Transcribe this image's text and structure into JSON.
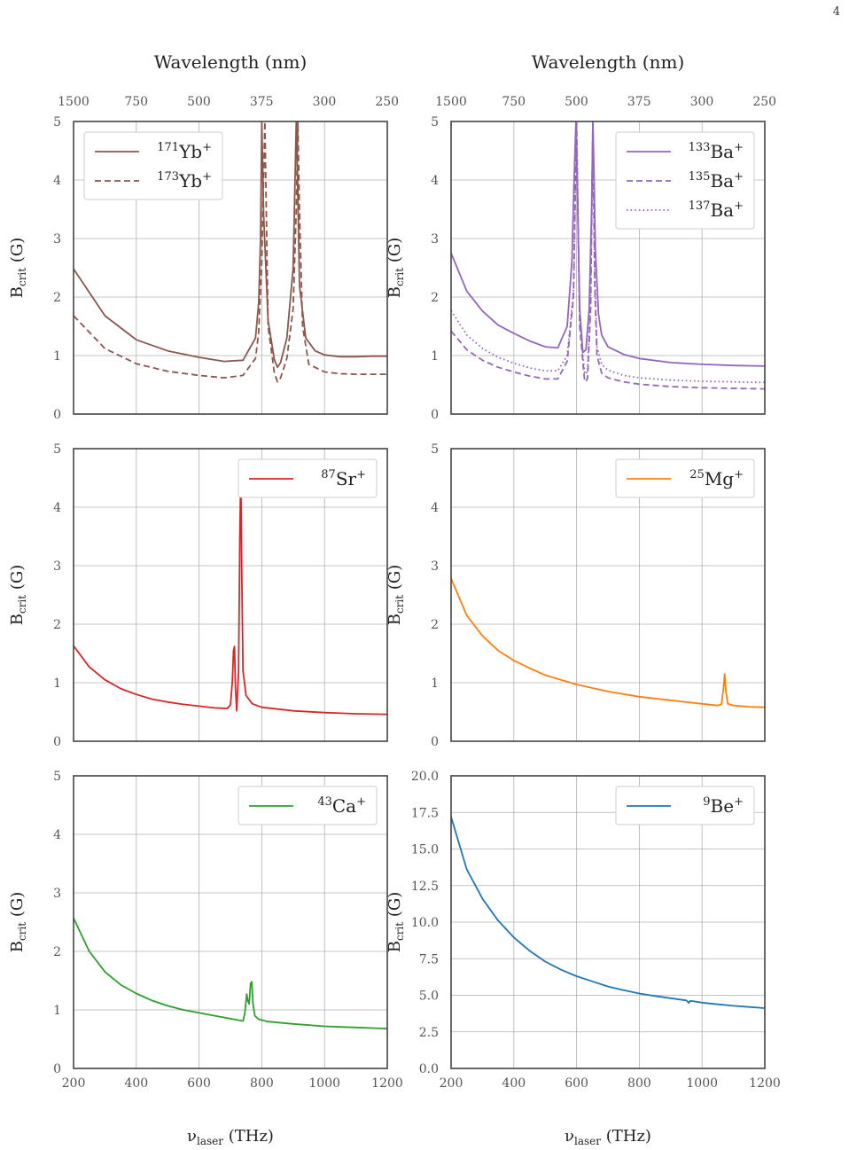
{
  "page_number": "4",
  "shared": {
    "top_axis_label": "Wavelength (nm)",
    "top_ticks": [
      "1500",
      "750",
      "500",
      "375",
      "300",
      "250"
    ],
    "x_label_main": "ν",
    "x_label_sub": "laser",
    "x_label_unit": " (THz)",
    "y_label_main": "B",
    "y_label_sub": "crit",
    "y_label_unit": " (G)"
  },
  "chart_data": [
    {
      "type": "line",
      "panel": "top-left",
      "xlim": [
        200,
        1200
      ],
      "ylim": [
        0,
        5
      ],
      "yticks": [
        0,
        1,
        2,
        3,
        4,
        5
      ],
      "ytick_labels": [
        "0",
        "1",
        "2",
        "3",
        "4",
        "5"
      ],
      "show_top_axis": true,
      "show_x_ticks": false,
      "legend_placement": "top-left",
      "grid": true,
      "series": [
        {
          "name": "Yb",
          "mass": "171",
          "color": "#8c564b",
          "dash": "solid",
          "x": [
            200,
            300,
            400,
            500,
            600,
            680,
            740,
            780,
            790,
            796,
            800,
            806,
            820,
            840,
            850,
            860,
            880,
            900,
            906,
            910,
            914,
            920,
            940,
            970,
            1000,
            1050,
            1100,
            1150,
            1200
          ],
          "y": [
            2.48,
            1.68,
            1.27,
            1.08,
            0.97,
            0.9,
            0.92,
            1.3,
            1.9,
            3.0,
            5.0,
            3.4,
            1.6,
            0.93,
            0.8,
            0.88,
            1.3,
            2.5,
            4.0,
            5.0,
            4.0,
            2.2,
            1.3,
            1.08,
            1.01,
            0.98,
            0.98,
            0.99,
            0.99
          ]
        },
        {
          "name": "Yb",
          "mass": "173",
          "color": "#8c564b",
          "dash": "dashed",
          "x": [
            200,
            300,
            400,
            500,
            600,
            680,
            740,
            780,
            790,
            800,
            810,
            820,
            840,
            850,
            860,
            880,
            900,
            910,
            915,
            920,
            930,
            950,
            1000,
            1050,
            1100,
            1150,
            1200
          ],
          "y": [
            1.68,
            1.12,
            0.86,
            0.73,
            0.66,
            0.62,
            0.66,
            0.95,
            1.4,
            2.6,
            5.0,
            1.5,
            0.7,
            0.55,
            0.62,
            0.95,
            1.8,
            3.5,
            5.0,
            3.5,
            1.5,
            0.85,
            0.72,
            0.69,
            0.68,
            0.68,
            0.68
          ]
        }
      ]
    },
    {
      "type": "line",
      "panel": "top-right",
      "xlim": [
        200,
        1200
      ],
      "ylim": [
        0,
        5
      ],
      "yticks": [
        0,
        1,
        2,
        3,
        4,
        5
      ],
      "ytick_labels": [
        "0",
        "1",
        "2",
        "3",
        "4",
        "5"
      ],
      "show_top_axis": true,
      "show_x_ticks": false,
      "legend_placement": "top-right",
      "grid": true,
      "series": [
        {
          "name": "Ba",
          "mass": "133",
          "color": "#9467bd",
          "dash": "solid",
          "x": [
            200,
            250,
            300,
            350,
            400,
            450,
            500,
            540,
            570,
            585,
            592,
            598,
            602,
            610,
            620,
            630,
            640,
            648,
            652,
            656,
            660,
            670,
            680,
            700,
            750,
            800,
            900,
            1000,
            1100,
            1200
          ],
          "y": [
            2.75,
            2.1,
            1.76,
            1.52,
            1.38,
            1.25,
            1.15,
            1.13,
            1.5,
            2.6,
            4.0,
            5.0,
            4.0,
            1.8,
            1.05,
            1.1,
            1.8,
            3.5,
            5.0,
            4.0,
            2.8,
            1.7,
            1.35,
            1.15,
            1.02,
            0.95,
            0.88,
            0.85,
            0.83,
            0.82
          ]
        },
        {
          "name": "Ba",
          "mass": "135",
          "color": "#9467bd",
          "dash": "dashed",
          "x": [
            200,
            250,
            300,
            350,
            400,
            450,
            500,
            540,
            570,
            590,
            600,
            610,
            625,
            630,
            635,
            645,
            652,
            658,
            665,
            680,
            700,
            750,
            800,
            900,
            1000,
            1100,
            1200
          ],
          "y": [
            1.42,
            1.1,
            0.92,
            0.8,
            0.72,
            0.65,
            0.6,
            0.6,
            0.9,
            2.0,
            5.0,
            1.5,
            0.6,
            0.55,
            0.62,
            1.8,
            5.0,
            2.2,
            1.0,
            0.7,
            0.62,
            0.55,
            0.51,
            0.47,
            0.45,
            0.44,
            0.43
          ]
        },
        {
          "name": "Ba",
          "mass": "137",
          "color": "#9467bd",
          "dash": "dotted",
          "x": [
            200,
            250,
            300,
            350,
            400,
            450,
            500,
            540,
            570,
            590,
            600,
            610,
            625,
            630,
            635,
            645,
            652,
            658,
            665,
            680,
            700,
            750,
            800,
            900,
            1000,
            1100,
            1200
          ],
          "y": [
            1.77,
            1.35,
            1.12,
            0.97,
            0.87,
            0.79,
            0.74,
            0.74,
            1.0,
            2.1,
            5.0,
            1.6,
            0.72,
            0.68,
            0.76,
            2.0,
            5.0,
            2.4,
            1.15,
            0.85,
            0.75,
            0.66,
            0.62,
            0.58,
            0.56,
            0.55,
            0.54
          ]
        }
      ]
    },
    {
      "type": "line",
      "panel": "middle-left",
      "xlim": [
        200,
        1200
      ],
      "ylim": [
        0,
        5
      ],
      "yticks": [
        0,
        1,
        2,
        3,
        4,
        5
      ],
      "ytick_labels": [
        "0",
        "1",
        "2",
        "3",
        "4",
        "5"
      ],
      "show_top_axis": false,
      "show_x_ticks": false,
      "legend_placement": "top-right",
      "grid": true,
      "series": [
        {
          "name": "Sr",
          "mass": "87",
          "color": "#d62728",
          "dash": "solid",
          "x": [
            200,
            250,
            300,
            350,
            400,
            450,
            500,
            550,
            600,
            650,
            690,
            700,
            706,
            710,
            713,
            716,
            720,
            726,
            730,
            733,
            736,
            740,
            750,
            770,
            800,
            900,
            1000,
            1100,
            1200
          ],
          "y": [
            1.63,
            1.27,
            1.05,
            0.9,
            0.8,
            0.72,
            0.67,
            0.63,
            0.6,
            0.57,
            0.56,
            0.62,
            1.0,
            1.55,
            1.62,
            0.9,
            0.52,
            1.2,
            3.5,
            4.58,
            3.0,
            1.2,
            0.78,
            0.64,
            0.58,
            0.52,
            0.49,
            0.47,
            0.46
          ]
        }
      ]
    },
    {
      "type": "line",
      "panel": "middle-right",
      "xlim": [
        200,
        1200
      ],
      "ylim": [
        0,
        5
      ],
      "yticks": [
        0,
        1,
        2,
        3,
        4,
        5
      ],
      "ytick_labels": [
        "0",
        "1",
        "2",
        "3",
        "4",
        "5"
      ],
      "show_top_axis": false,
      "show_x_ticks": false,
      "legend_placement": "top-right",
      "grid": true,
      "series": [
        {
          "name": "Mg",
          "mass": "25",
          "color": "#ff7f0e",
          "dash": "solid",
          "x": [
            200,
            250,
            300,
            350,
            400,
            450,
            500,
            600,
            700,
            800,
            900,
            1000,
            1050,
            1062,
            1068,
            1072,
            1076,
            1082,
            1100,
            1150,
            1200
          ],
          "y": [
            2.78,
            2.15,
            1.8,
            1.55,
            1.38,
            1.25,
            1.13,
            0.97,
            0.85,
            0.76,
            0.7,
            0.64,
            0.61,
            0.63,
            0.9,
            1.15,
            0.85,
            0.64,
            0.61,
            0.59,
            0.58
          ]
        }
      ]
    },
    {
      "type": "line",
      "panel": "bottom-left",
      "xlim": [
        200,
        1200
      ],
      "ylim": [
        0,
        5
      ],
      "yticks": [
        0,
        1,
        2,
        3,
        4,
        5
      ],
      "ytick_labels": [
        "0",
        "1",
        "2",
        "3",
        "4",
        "5"
      ],
      "xticks": [
        200,
        400,
        600,
        800,
        1000,
        1200
      ],
      "xtick_labels": [
        "200",
        "400",
        "600",
        "800",
        "1000",
        "1200"
      ],
      "show_top_axis": false,
      "show_x_ticks": true,
      "legend_placement": "top-right",
      "grid": true,
      "series": [
        {
          "name": "Ca",
          "mass": "43",
          "color": "#2ca02c",
          "dash": "solid",
          "x": [
            200,
            250,
            300,
            350,
            400,
            450,
            500,
            550,
            600,
            650,
            700,
            740,
            746,
            752,
            756,
            760,
            764,
            768,
            772,
            778,
            790,
            820,
            900,
            1000,
            1100,
            1200
          ],
          "y": [
            2.57,
            2.0,
            1.65,
            1.43,
            1.28,
            1.16,
            1.07,
            1.0,
            0.95,
            0.9,
            0.85,
            0.81,
            0.95,
            1.27,
            1.15,
            1.1,
            1.45,
            1.48,
            1.1,
            0.9,
            0.84,
            0.8,
            0.76,
            0.72,
            0.7,
            0.68
          ]
        }
      ]
    },
    {
      "type": "line",
      "panel": "bottom-right",
      "xlim": [
        200,
        1200
      ],
      "ylim": [
        0,
        20
      ],
      "yticks": [
        0,
        2.5,
        5,
        7.5,
        10,
        12.5,
        15,
        17.5,
        20
      ],
      "ytick_labels": [
        "0.0",
        "2.5",
        "5.0",
        "7.5",
        "10.0",
        "12.5",
        "15.0",
        "17.5",
        "20.0"
      ],
      "xticks": [
        200,
        400,
        600,
        800,
        1000,
        1200
      ],
      "xtick_labels": [
        "200",
        "400",
        "600",
        "800",
        "1000",
        "1200"
      ],
      "show_top_axis": false,
      "show_x_ticks": true,
      "legend_placement": "top-right",
      "grid": true,
      "series": [
        {
          "name": "Be",
          "mass": "9",
          "color": "#1f77b4",
          "dash": "solid",
          "x": [
            200,
            250,
            300,
            350,
            400,
            450,
            500,
            550,
            600,
            650,
            700,
            750,
            800,
            850,
            900,
            950,
            958,
            962,
            970,
            1000,
            1050,
            1100,
            1150,
            1200
          ],
          "y": [
            17.2,
            13.6,
            11.6,
            10.1,
            8.95,
            8.05,
            7.3,
            6.75,
            6.3,
            5.95,
            5.6,
            5.35,
            5.12,
            4.95,
            4.8,
            4.65,
            4.48,
            4.62,
            4.6,
            4.5,
            4.38,
            4.28,
            4.2,
            4.12
          ]
        }
      ]
    }
  ]
}
